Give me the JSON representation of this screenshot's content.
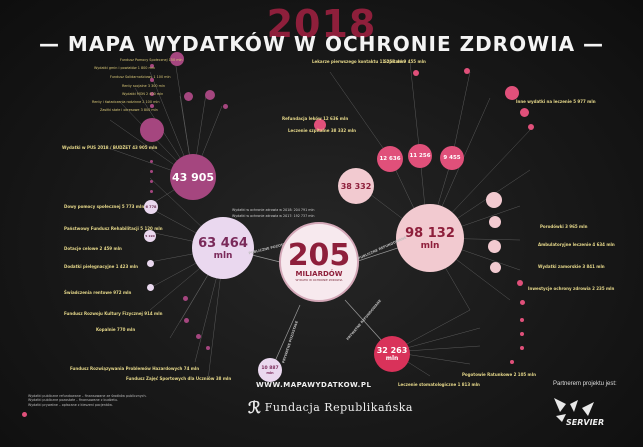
{
  "header": {
    "year": "2018",
    "title": "— MAPA WYDATKÓW W OCHRONIE ZDROWIA —"
  },
  "center": {
    "value": "205",
    "unit": "MILIARDÓW",
    "caption": "WYDATKI W OCHRONIE ZDROWIA"
  },
  "summary_lines": [
    "Wydatki w ochronie zdrowia w 2018: 204 791 mln",
    "Wydatki w ochronie zdrowia w 2017: 192 737 mln"
  ],
  "hubs": {
    "purple_top": {
      "value": "43 905"
    },
    "purple_mid": {
      "value": "63 464",
      "unit": "mln",
      "connector": "PUBLICZNE POZOSTAŁE"
    },
    "pink": {
      "value": "98 132",
      "unit": "mln",
      "connector": "PUBLICZNE REFUNDOWANE"
    },
    "red": {
      "value": "32 263",
      "unit": "mln",
      "connector": "PRYWATNE REFUNDOWANE"
    },
    "small": {
      "value": "10 887",
      "unit": "mln",
      "connector": "PRYWATNE POZOSTAŁE"
    }
  },
  "pink_small_circles": [
    "12 636",
    "11 256",
    "9 455",
    "38 332"
  ],
  "purple_small_circles": [
    "6 778",
    "5 190"
  ],
  "labels_left": [
    "Fundusz Pomocy Społecznej 150 mln",
    "Wydatki gmin i powiatów 1 800 mln",
    "Fundusz Solidarnościowy 1 100 mln",
    "Renty socjalne 3 300 mln",
    "Wydatki MON 2 400 mln",
    "Renty i świadczenia rodzinne 2 100 mln",
    "Zasiłki stałe i okresowe 3 800 mln",
    "Wydatki w PUS 2018 / BUDŻET 43 905 mln",
    "Dowy pomocy społecznej 5 773 mln",
    "Państwowy Fundusz Rehabilitacji 5 120 mln",
    "Dotacje celowe 2 459 mln",
    "Dodatki pielęgnacyjne 1 423 mln",
    "Świadczenia rentowe 972 mln",
    "Fundusz Rozwoju Kultury Fizycznej 914 mln",
    "Kopalnie 770 mln",
    "Fundusz Rozwiązywania Problemów Hazardowych 74 mln",
    "Fundusz Zajęć Sportowych dla Uczniów 38 mln"
  ],
  "labels_right": [
    "Lekarze pierwszego kontaktu 11 256 mln",
    "Szpitale 9 455 mln",
    "Refundacja leków 12 636 mln",
    "Leczenie szpitalne 38 332 mln",
    "Inne wydatki na leczenie 5 977 mln",
    "Porodówki 3 965 mln",
    "Ambulatoryjne leczenie 4 634 mln",
    "Wydatki zamorskie 3 841 mln",
    "Inwestycje ochrony zdrowia 2 235 mln",
    "Pogotowie Ratunkowe 2 105 mln",
    "Leczenie stomatologiczne 1 813 mln"
  ],
  "footer": {
    "url": "WWW.MAPAWYDATKOW.PL",
    "partner_label": "Partnerem projektu jest:",
    "org": "Fundacja Republikańska",
    "sponsor": "SERVIER",
    "notes": [
      "Wydatki publiczne refundowane – finansowane ze środków publicznych.",
      "Wydatki publiczne pozostałe – finansowane z budżetu.",
      "Wydatki prywatne – opłacane z kieszeni pacjentów."
    ]
  },
  "colors": {
    "purple": "#a5467f",
    "purple_light": "#ead8ef",
    "pink": "#f2cad0",
    "accent": "#e0507a",
    "red": "#d9325a",
    "gold": "#d8c777",
    "dark": "#151515"
  }
}
